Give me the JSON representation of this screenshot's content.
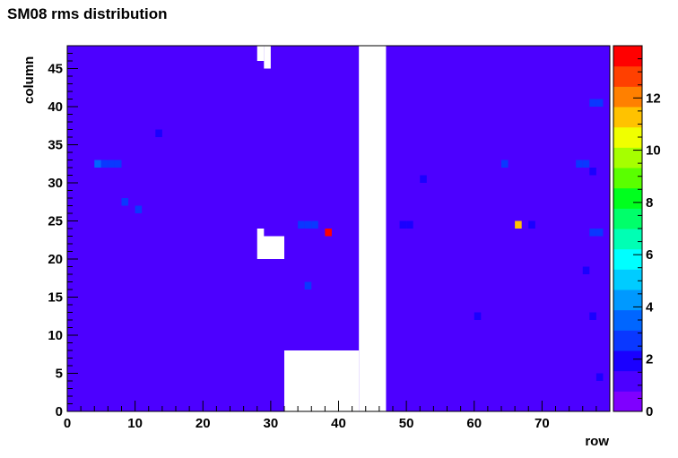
{
  "chart_data": {
    "type": "heatmap",
    "title": "SM08 rms distribution",
    "xlabel": "row",
    "ylabel": "column",
    "xlim": [
      0,
      80
    ],
    "ylim": [
      0,
      48
    ],
    "zlim": [
      0,
      14
    ],
    "x_ticks": [
      0,
      10,
      20,
      30,
      40,
      50,
      60,
      70
    ],
    "y_ticks": [
      0,
      5,
      10,
      15,
      20,
      25,
      30,
      35,
      40,
      45
    ],
    "z_ticks": [
      0,
      2,
      4,
      6,
      8,
      10,
      12
    ],
    "background_value": 1.3,
    "empty_regions": [
      {
        "x": [
          43,
          47
        ],
        "y": [
          0,
          48
        ]
      },
      {
        "x": [
          32,
          43
        ],
        "y": [
          0,
          8
        ]
      },
      {
        "x": [
          28,
          32
        ],
        "y": [
          20,
          23
        ]
      },
      {
        "x": [
          28,
          29
        ],
        "y": [
          23,
          24
        ]
      },
      {
        "x": [
          29,
          30
        ],
        "y": [
          47,
          48
        ]
      },
      {
        "x": [
          28,
          29
        ],
        "y": [
          46,
          48
        ]
      },
      {
        "x": [
          29,
          30
        ],
        "y": [
          45,
          47
        ]
      }
    ],
    "cells": [
      {
        "x": 38,
        "y": 23,
        "value": 13.5
      },
      {
        "x": 66,
        "y": 24,
        "value": 11.5
      },
      {
        "x": 4,
        "y": 32,
        "value": 3.2
      },
      {
        "x": 5,
        "y": 32,
        "value": 2.6
      },
      {
        "x": 6,
        "y": 32,
        "value": 2.6
      },
      {
        "x": 7,
        "y": 32,
        "value": 2.6
      },
      {
        "x": 64,
        "y": 32,
        "value": 3.0
      },
      {
        "x": 75,
        "y": 32,
        "value": 3.0
      },
      {
        "x": 76,
        "y": 32,
        "value": 3.0
      },
      {
        "x": 77,
        "y": 40,
        "value": 2.6
      },
      {
        "x": 78,
        "y": 40,
        "value": 2.6
      },
      {
        "x": 34,
        "y": 24,
        "value": 2.6
      },
      {
        "x": 35,
        "y": 24,
        "value": 2.6
      },
      {
        "x": 36,
        "y": 24,
        "value": 2.6
      },
      {
        "x": 8,
        "y": 27,
        "value": 2.6
      },
      {
        "x": 10,
        "y": 26,
        "value": 2.6
      },
      {
        "x": 77,
        "y": 23,
        "value": 2.6
      },
      {
        "x": 78,
        "y": 23,
        "value": 2.6
      },
      {
        "x": 49,
        "y": 24,
        "value": 2.2
      },
      {
        "x": 50,
        "y": 24,
        "value": 2.2
      },
      {
        "x": 68,
        "y": 24,
        "value": 2.2
      },
      {
        "x": 35,
        "y": 16,
        "value": 2.6
      },
      {
        "x": 13,
        "y": 36,
        "value": 2.2
      },
      {
        "x": 52,
        "y": 30,
        "value": 2.2
      },
      {
        "x": 77,
        "y": 31,
        "value": 2.2
      },
      {
        "x": 60,
        "y": 12,
        "value": 2.2
      },
      {
        "x": 76,
        "y": 18,
        "value": 2.2
      },
      {
        "x": 77,
        "y": 12,
        "value": 2.2
      },
      {
        "x": 78,
        "y": 4,
        "value": 2.2
      }
    ]
  }
}
